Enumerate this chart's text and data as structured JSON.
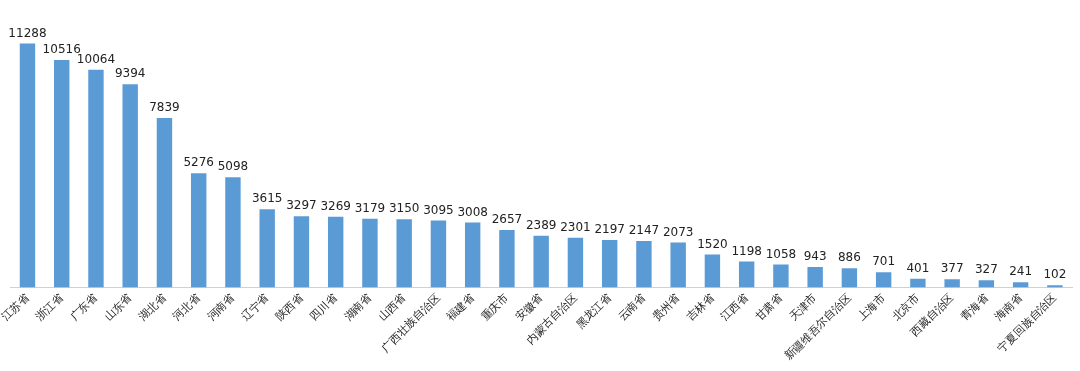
{
  "chart_data": {
    "type": "bar",
    "categories": [
      "江苏省",
      "浙江省",
      "广东省",
      "山东省",
      "湖北省",
      "河北省",
      "河南省",
      "辽宁省",
      "陕西省",
      "四川省",
      "湖南省",
      "山西省",
      "广西壮族自治区",
      "福建省",
      "重庆市",
      "安徽省",
      "内蒙古自治区",
      "黑龙江省",
      "云南省",
      "贵州省",
      "吉林省",
      "江西省",
      "甘肃省",
      "天津市",
      "新疆维吾尔自治区",
      "上海市",
      "北京市",
      "西藏自治区",
      "青海省",
      "海南省",
      "宁夏回族自治区"
    ],
    "values": [
      11288,
      10516,
      10064,
      9394,
      7839,
      5276,
      5098,
      3615,
      3297,
      3269,
      3179,
      3150,
      3095,
      3008,
      2657,
      2389,
      2301,
      2197,
      2147,
      2073,
      1520,
      1198,
      1058,
      943,
      886,
      701,
      401,
      377,
      327,
      241,
      102
    ],
    "color": "#5b9bd5",
    "data_labels": true,
    "grid": false,
    "legend": false,
    "tick_labels": "x"
  }
}
